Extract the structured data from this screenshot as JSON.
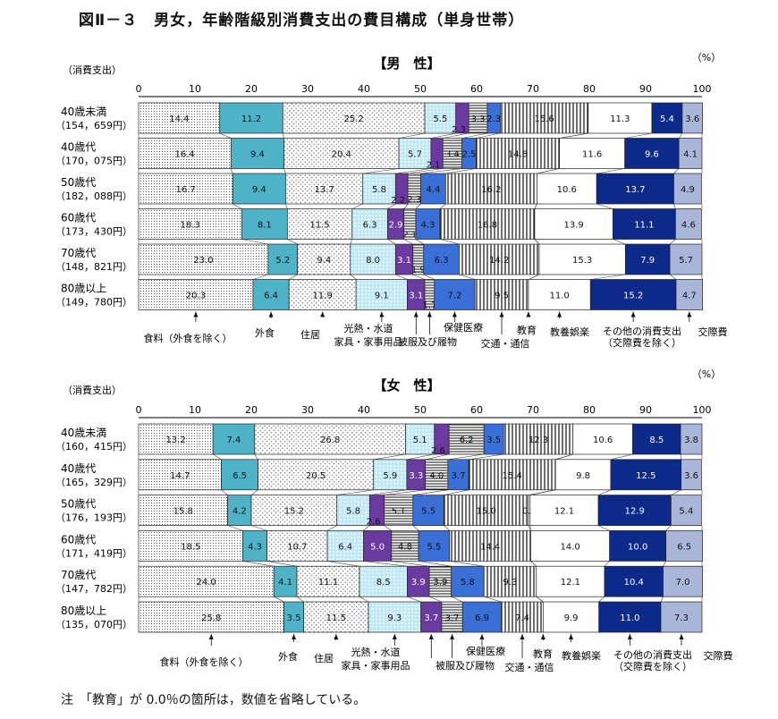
{
  "title": "図Ⅱ－３　男女，年齢階級別消費支出の費目構成（単身世帯）",
  "note": "注　「教育」が 0.0％の箇所は，数値を省略している。",
  "chart_data": [
    {
      "type": "bar",
      "stacked": "100%",
      "orientation": "horizontal",
      "title": "【男　性】",
      "ylabel": "（消費支出）",
      "unit": "（%）",
      "xlim": [
        0,
        100
      ],
      "xticks": [
        "0",
        "10",
        "20",
        "30",
        "40",
        "50",
        "60",
        "70",
        "80",
        "90",
        "100"
      ],
      "categories": [
        {
          "label": "40歳未満",
          "sub": "（154，659円）"
        },
        {
          "label": "40歳代",
          "sub": "（170，075円）"
        },
        {
          "label": "50歳代",
          "sub": "（182，088円）"
        },
        {
          "label": "60歳代",
          "sub": "（173，430円）"
        },
        {
          "label": "70歳代",
          "sub": "（148，821円）"
        },
        {
          "label": "80歳以上",
          "sub": "（149，780円）"
        }
      ],
      "series": [
        {
          "name": "食料（外食を除く）",
          "values": [
            14.4,
            16.4,
            16.7,
            18.3,
            23.0,
            20.3
          ]
        },
        {
          "name": "外食",
          "values": [
            11.2,
            9.4,
            9.4,
            8.1,
            5.2,
            6.4
          ]
        },
        {
          "name": "住居",
          "values": [
            25.2,
            20.4,
            13.7,
            11.5,
            9.4,
            11.9
          ]
        },
        {
          "name": "光熱・水道",
          "values": [
            5.5,
            5.7,
            5.8,
            6.3,
            8.0,
            9.1
          ]
        },
        {
          "name": "家具・家事用品",
          "values": [
            2.3,
            2.1,
            2.2,
            2.9,
            3.1,
            3.1
          ]
        },
        {
          "name": "被服及び履物",
          "values": [
            3.3,
            3.4,
            2.3,
            2.1,
            1.9,
            1.7
          ]
        },
        {
          "name": "保健医療",
          "values": [
            2.3,
            2.5,
            4.4,
            4.3,
            6.3,
            7.2
          ]
        },
        {
          "name": "交通・通信",
          "values": [
            15.6,
            14.8,
            16.2,
            16.8,
            14.2,
            9.5
          ]
        },
        {
          "name": "教育",
          "values": [
            0.0,
            0.0,
            0.0,
            0.0,
            0.0,
            0.0
          ]
        },
        {
          "name": "教養娯楽",
          "values": [
            11.3,
            11.6,
            10.6,
            13.9,
            15.3,
            11.0
          ]
        },
        {
          "name": "その他の消費支出（交際費を除く）",
          "values": [
            5.4,
            9.6,
            13.7,
            11.1,
            7.9,
            15.2
          ]
        },
        {
          "name": "交際費",
          "values": [
            3.6,
            4.1,
            4.9,
            4.6,
            5.7,
            4.7
          ]
        }
      ]
    },
    {
      "type": "bar",
      "stacked": "100%",
      "orientation": "horizontal",
      "title": "【女　性】",
      "ylabel": "（消費支出）",
      "unit": "（%）",
      "xlim": [
        0,
        100
      ],
      "xticks": [
        "0",
        "10",
        "20",
        "30",
        "40",
        "50",
        "60",
        "70",
        "80",
        "90",
        "100"
      ],
      "categories": [
        {
          "label": "40歳未満",
          "sub": "（160，415円）"
        },
        {
          "label": "40歳代",
          "sub": "（165，329円）"
        },
        {
          "label": "50歳代",
          "sub": "（176，193円）"
        },
        {
          "label": "60歳代",
          "sub": "（171，419円）"
        },
        {
          "label": "70歳代",
          "sub": "（147，782円）"
        },
        {
          "label": "80歳以上",
          "sub": "（135，070円）"
        }
      ],
      "series": [
        {
          "name": "食料（外食を除く）",
          "values": [
            13.2,
            14.7,
            15.8,
            18.5,
            24.0,
            25.8
          ]
        },
        {
          "name": "外食",
          "values": [
            7.4,
            6.5,
            4.2,
            4.3,
            4.1,
            3.5
          ]
        },
        {
          "name": "住居",
          "values": [
            26.8,
            20.5,
            15.2,
            10.7,
            11.1,
            11.5
          ]
        },
        {
          "name": "光熱・水道",
          "values": [
            5.1,
            5.9,
            5.8,
            6.4,
            8.5,
            9.3
          ]
        },
        {
          "name": "家具・家事用品",
          "values": [
            2.6,
            3.3,
            2.6,
            5.0,
            3.9,
            3.7
          ]
        },
        {
          "name": "被服及び履物",
          "values": [
            6.2,
            4.0,
            5.1,
            4.8,
            3.9,
            3.7
          ]
        },
        {
          "name": "保健医療",
          "values": [
            3.5,
            3.7,
            5.5,
            5.5,
            5.8,
            6.9
          ]
        },
        {
          "name": "交通・通信",
          "values": [
            12.3,
            15.4,
            15.0,
            14.4,
            9.3,
            7.4
          ]
        },
        {
          "name": "教育",
          "values": [
            0.0,
            0.0,
            0.3,
            0.0,
            0.0,
            0.0
          ]
        },
        {
          "name": "教養娯楽",
          "values": [
            10.6,
            9.8,
            12.1,
            14.0,
            12.1,
            9.9
          ]
        },
        {
          "name": "その他の消費支出（交際費を除く）",
          "values": [
            8.5,
            12.5,
            12.9,
            10.0,
            10.4,
            11.0
          ]
        },
        {
          "name": "交際費",
          "values": [
            3.8,
            3.6,
            5.4,
            6.5,
            7.0,
            7.3
          ]
        }
      ]
    }
  ]
}
